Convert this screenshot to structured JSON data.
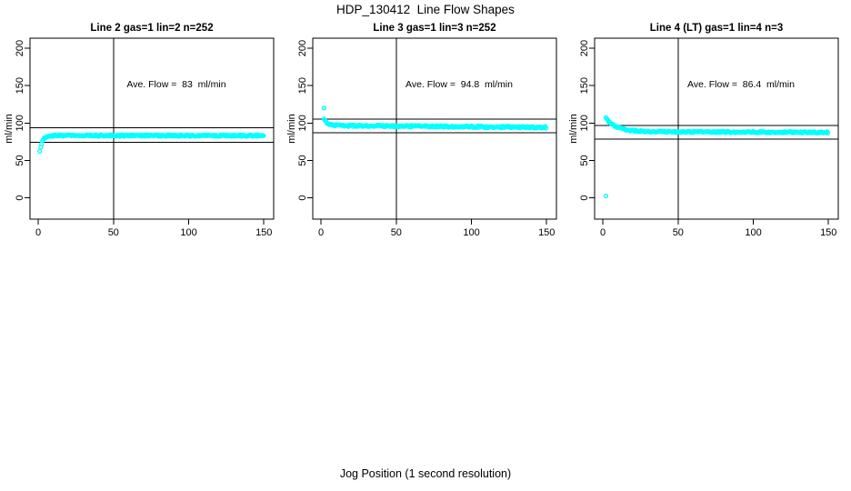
{
  "title": "HDP_130412  Line Flow Shapes",
  "xlabel": "Jog Position (1 second resolution)",
  "colors": {
    "marker": "#00FFFF",
    "axis": "#000000",
    "background": "#FFFFFF"
  },
  "chart_data": [
    {
      "type": "scatter",
      "title": "Line 2 gas=1 lin=2 n=252",
      "annotation": "Ave. Flow =  83  ml/min",
      "ave_flow_ml_min": 83,
      "n": 252,
      "ylabel": "ml/min",
      "xticks": [
        0,
        50,
        100,
        150
      ],
      "yticks": [
        0,
        50,
        100,
        150,
        200
      ],
      "xlim": [
        -5.5,
        156.5
      ],
      "ylim": [
        -28.5,
        213.5
      ],
      "ref_hlines": [
        93.5,
        74.5
      ],
      "ref_vline": 50,
      "annotation_pos": [
        95,
        152
      ],
      "series": [
        {
          "kind": "decay",
          "x0": 1,
          "x1": 150,
          "step": 0.6,
          "flat_start": 83.4,
          "flat_end": 83.2,
          "amp": -21,
          "tau": 1.8,
          "spread": 1.1
        }
      ],
      "outliers": []
    },
    {
      "type": "scatter",
      "title": "Line 3 gas=1 lin=3 n=252",
      "annotation": "Ave. Flow =  94.8  ml/min",
      "ave_flow_ml_min": 94.8,
      "n": 252,
      "ylabel": "ml/min",
      "xticks": [
        0,
        50,
        100,
        150
      ],
      "yticks": [
        0,
        50,
        100,
        150,
        200
      ],
      "xlim": [
        -5.5,
        156.5
      ],
      "ylim": [
        -28.5,
        213.5
      ],
      "ref_hlines": [
        105,
        87
      ],
      "ref_vline": 50,
      "annotation_pos": [
        91,
        152
      ],
      "series": [
        {
          "kind": "decay",
          "x0": 2,
          "x1": 150,
          "step": 0.6,
          "flat_start": 96.8,
          "flat_end": 94.3,
          "amp": 8,
          "tau": 2.5,
          "spread": 1.2
        }
      ],
      "outliers": [
        [
          2,
          120
        ]
      ]
    },
    {
      "type": "scatter",
      "title": "Line 4 (LT) gas=1 lin=4 n=3",
      "annotation": "Ave. Flow =  86.4  ml/min",
      "ave_flow_ml_min": 86.4,
      "n": 3,
      "ylabel": "ml/min",
      "xticks": [
        0,
        50,
        100,
        150
      ],
      "yticks": [
        0,
        50,
        100,
        150,
        200
      ],
      "xlim": [
        -5.5,
        156.5
      ],
      "ylim": [
        -28.5,
        213.5
      ],
      "ref_hlines": [
        97,
        78.5
      ],
      "ref_vline": 50,
      "annotation_pos": [
        91,
        152
      ],
      "series": [
        {
          "kind": "decay",
          "x0": 2,
          "x1": 150,
          "step": 0.6,
          "flat_start": 88.6,
          "flat_end": 87.6,
          "amp": 18,
          "tau": 7,
          "spread": 1.0
        }
      ],
      "outliers": [
        [
          2,
          2.5
        ]
      ]
    }
  ]
}
